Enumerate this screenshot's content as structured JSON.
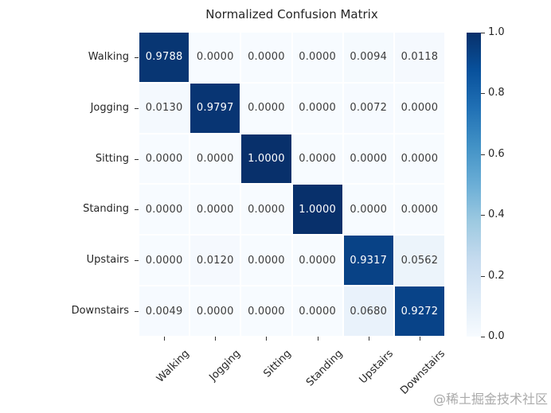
{
  "title": "Normalized Confusion Matrix",
  "watermark": "@稀土掘金技术社区",
  "chart_data": {
    "type": "heatmap",
    "title": "Normalized Confusion Matrix",
    "x_labels": [
      "Walking",
      "Jogging",
      "Sitting",
      "Standing",
      "Upstairs",
      "Downstairs"
    ],
    "y_labels": [
      "Walking",
      "Jogging",
      "Sitting",
      "Standing",
      "Upstairs",
      "Downstairs"
    ],
    "matrix": [
      [
        0.9788,
        0.0,
        0.0,
        0.0,
        0.0094,
        0.0118
      ],
      [
        0.013,
        0.9797,
        0.0,
        0.0,
        0.0072,
        0.0
      ],
      [
        0.0,
        0.0,
        1.0,
        0.0,
        0.0,
        0.0
      ],
      [
        0.0,
        0.0,
        0.0,
        1.0,
        0.0,
        0.0
      ],
      [
        0.0,
        0.012,
        0.0,
        0.0,
        0.9317,
        0.0562
      ],
      [
        0.0049,
        0.0,
        0.0,
        0.0,
        0.068,
        0.9272
      ]
    ],
    "value_decimals": 4,
    "vmin": 0.0,
    "vmax": 1.0,
    "colormap": "Blues",
    "colorbar_ticks": [
      1.0,
      0.8,
      0.6,
      0.4,
      0.2,
      0.0
    ],
    "colorbar_tick_decimals": 1,
    "gridlines": "white",
    "legend_position": "right-colorbar",
    "colors": {
      "background": "#ffffff",
      "axis_text": "#262626",
      "annot_on_light": "#3c3c3c",
      "annot_on_dark": "#ffffff",
      "tick_mark": "#333333",
      "watermark": "#aaaaaa",
      "colormap_anchors": [
        "#f7fbff",
        "#deebf7",
        "#c6dbef",
        "#9ecae1",
        "#6baed6",
        "#4292c6",
        "#2171b5",
        "#08519c",
        "#08306b"
      ]
    }
  }
}
